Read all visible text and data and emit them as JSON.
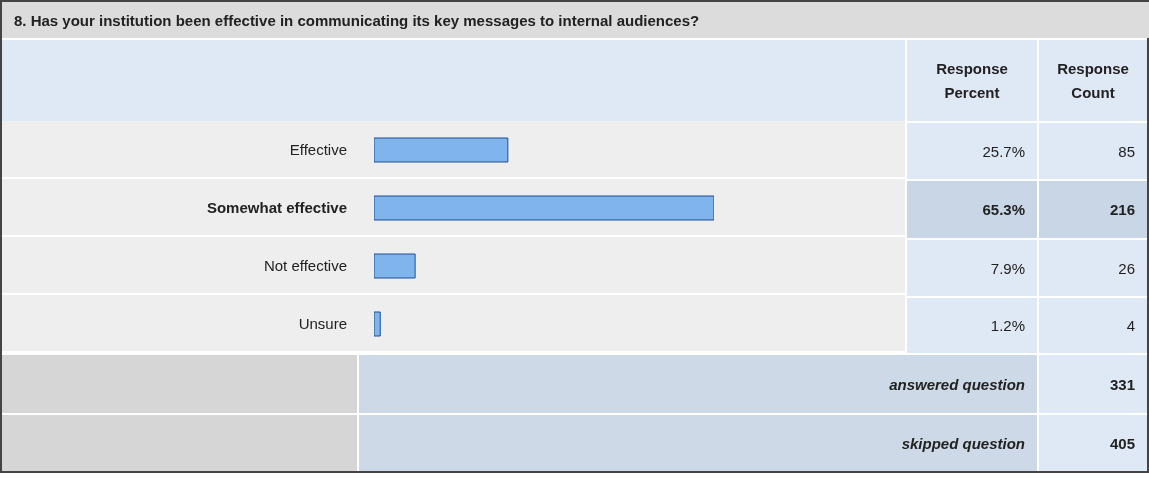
{
  "chart_data": {
    "type": "bar",
    "orientation": "horizontal",
    "title": "8. Has your institution been effective in communicating its key messages to internal audiences?",
    "categories": [
      "Effective",
      "Somewhat effective",
      "Not effective",
      "Unsure"
    ],
    "series": [
      {
        "name": "Response Percent",
        "color": "#80b4ec",
        "values": [
          25.7,
          65.3,
          7.9,
          1.2
        ],
        "value_labels": [
          "25.7%",
          "65.3%",
          "7.9%",
          "1.2%"
        ]
      }
    ],
    "tick_labels": "y",
    "annotations": [
      "Response Count",
      "85",
      "216",
      "26",
      "4",
      "answered question",
      "331",
      "skipped question",
      "405"
    ]
  }
}
